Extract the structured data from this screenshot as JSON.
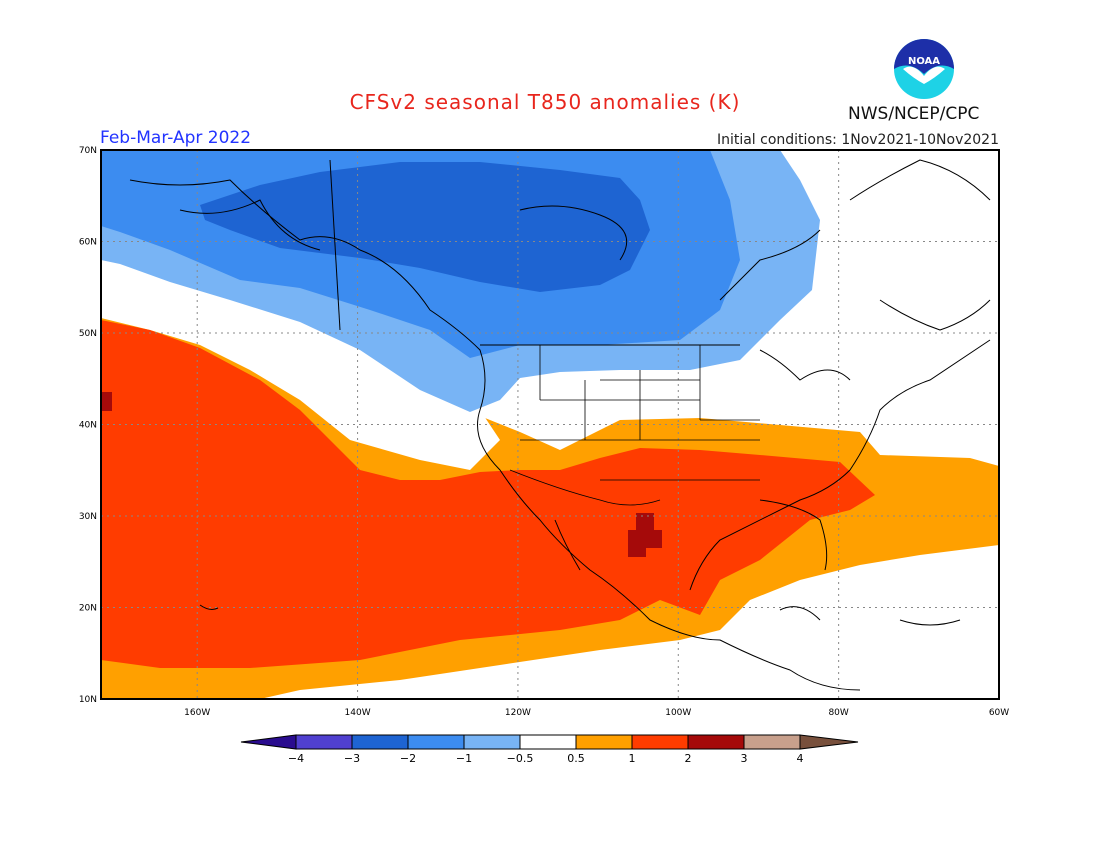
{
  "title": "CFSv2 seasonal T850 anomalies (K)",
  "agency": "NWS/NCEP/CPC",
  "period": "Feb-Mar-Apr 2022",
  "initial_conditions": "Initial conditions: 1Nov2021-10Nov2021",
  "logo": {
    "text": "NOAA",
    "icon": "noaa-logo-icon"
  },
  "map": {
    "lon_range": [
      -172,
      -60
    ],
    "lat_range": [
      10,
      70
    ],
    "lon_ticks": [
      "160W",
      "140W",
      "120W",
      "100W",
      "80W",
      "60W"
    ],
    "lat_ticks": [
      "10N",
      "20N",
      "30N",
      "40N",
      "50N",
      "60N",
      "70N"
    ],
    "grid": "dotted"
  },
  "colorbar": {
    "labels": [
      "-4",
      "-3",
      "-2",
      "-1",
      "-0.5",
      "0.5",
      "1",
      "2",
      "3",
      "4"
    ],
    "colors": [
      "#2a0c8f",
      "#5040d0",
      "#1e64d2",
      "#3c8cf0",
      "#78b4f5",
      "#ffffff",
      "#ffa000",
      "#ff3c00",
      "#a50a0a",
      "#c8a08c",
      "#78503c"
    ]
  },
  "regions": [
    {
      "name": "cold-anomaly-outer",
      "category": "-0.5 to -1"
    },
    {
      "name": "cold-anomaly-mid",
      "category": "-1 to -2"
    },
    {
      "name": "cold-anomaly-core",
      "category": "-2 to -3"
    },
    {
      "name": "warm-anomaly-outer",
      "category": "0.5 to 1"
    },
    {
      "name": "warm-anomaly-mid",
      "category": "1 to 2"
    },
    {
      "name": "warm-anomaly-core",
      "category": "2 to 3"
    }
  ]
}
